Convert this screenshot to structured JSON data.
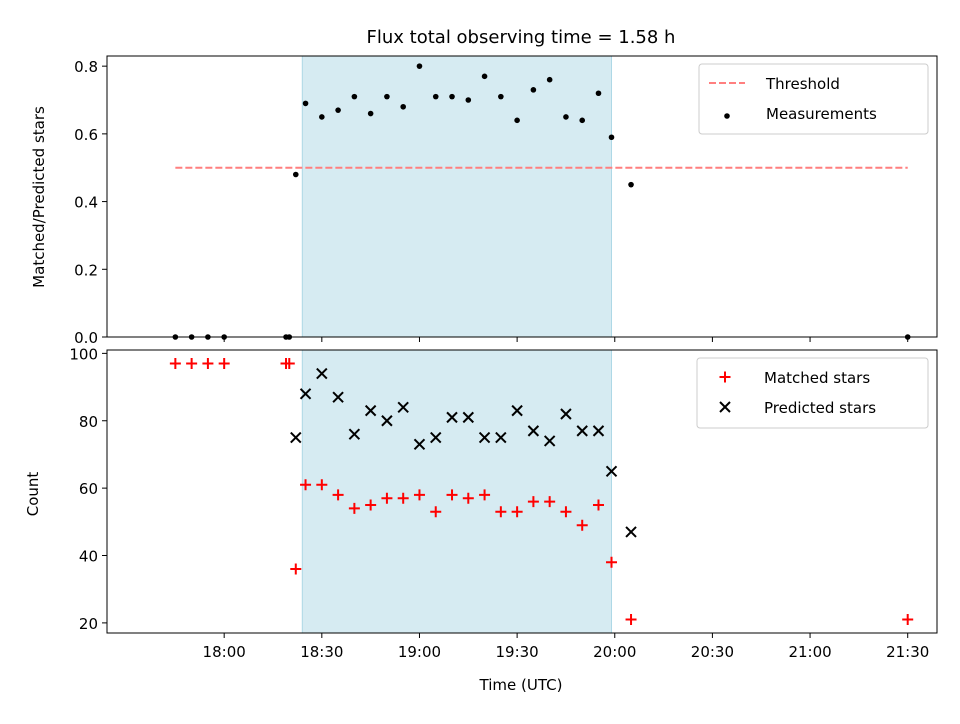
{
  "chart_data": [
    {
      "type": "scatter",
      "title": "Flux total observing time = 1.58 h",
      "xlabel": "",
      "ylabel": "Matched/Predicted stars",
      "x_unit": "minutes since 17:30 UTC",
      "xlim": [
        -6,
        249
      ],
      "ylim": [
        0,
        0.83
      ],
      "yticks": [
        0.0,
        0.2,
        0.4,
        0.6,
        0.8
      ],
      "ytick_labels": [
        "0.0",
        "0.2",
        "0.4",
        "0.6",
        "0.8"
      ],
      "shaded_span": [
        54,
        149
      ],
      "legend_position": "upper right",
      "series": [
        {
          "name": "Threshold",
          "kind": "dashed-line",
          "color": "#ff7f7f",
          "x": [
            15,
            240
          ],
          "y": [
            0.5,
            0.5
          ]
        },
        {
          "name": "Measurements",
          "kind": "dots",
          "color": "#000000",
          "x": [
            15,
            20,
            25,
            30,
            49,
            50,
            52,
            55,
            60,
            65,
            70,
            75,
            80,
            85,
            90,
            95,
            100,
            105,
            110,
            115,
            120,
            125,
            130,
            135,
            140,
            145,
            149,
            155,
            240
          ],
          "y": [
            0,
            0,
            0,
            0,
            0,
            0,
            0.48,
            0.69,
            0.65,
            0.67,
            0.71,
            0.66,
            0.71,
            0.68,
            0.8,
            0.71,
            0.71,
            0.7,
            0.77,
            0.71,
            0.64,
            0.73,
            0.76,
            0.65,
            0.64,
            0.72,
            0.59,
            0.45,
            0
          ]
        }
      ]
    },
    {
      "type": "scatter",
      "title": "",
      "xlabel": "Time (UTC)",
      "ylabel": "Count",
      "x_unit": "minutes since 17:30 UTC",
      "xlim": [
        -6,
        249
      ],
      "ylim": [
        17,
        101
      ],
      "yticks": [
        20,
        40,
        60,
        80,
        100
      ],
      "ytick_labels": [
        "20",
        "40",
        "60",
        "80",
        "100"
      ],
      "xticks": [
        30,
        60,
        90,
        120,
        150,
        180,
        210,
        240
      ],
      "xtick_labels": [
        "18:00",
        "18:30",
        "19:00",
        "19:30",
        "20:00",
        "20:30",
        "21:00",
        "21:30"
      ],
      "shaded_span": [
        54,
        149
      ],
      "legend_position": "upper right",
      "series": [
        {
          "name": "Matched stars",
          "marker": "plus",
          "color": "#ff0000",
          "x": [
            15,
            20,
            25,
            30,
            49,
            50,
            52,
            55,
            60,
            65,
            70,
            75,
            80,
            85,
            90,
            95,
            100,
            105,
            110,
            115,
            120,
            125,
            130,
            135,
            140,
            145,
            149,
            155,
            240
          ],
          "y": [
            97,
            97,
            97,
            97,
            97,
            97,
            36,
            61,
            61,
            58,
            54,
            55,
            57,
            57,
            58,
            53,
            58,
            57,
            58,
            53,
            53,
            56,
            56,
            53,
            49,
            55,
            38,
            21,
            21
          ]
        },
        {
          "name": "Predicted stars",
          "marker": "x",
          "color": "#000000",
          "x": [
            52,
            55,
            60,
            65,
            70,
            75,
            80,
            85,
            90,
            95,
            100,
            105,
            110,
            115,
            120,
            125,
            130,
            135,
            140,
            145,
            149,
            155
          ],
          "y": [
            75,
            88,
            94,
            87,
            76,
            83,
            80,
            84,
            73,
            75,
            81,
            81,
            75,
            75,
            83,
            77,
            74,
            82,
            77,
            77,
            65,
            47
          ]
        }
      ]
    }
  ]
}
